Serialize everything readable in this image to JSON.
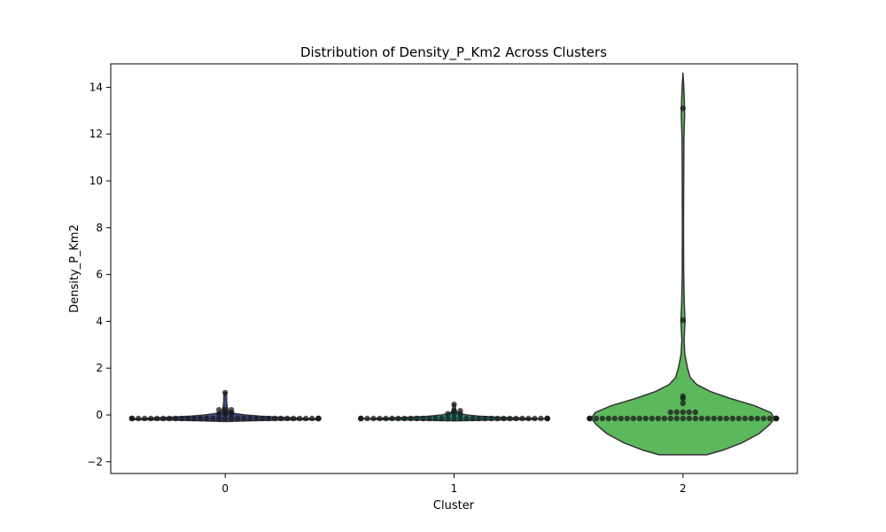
{
  "chart_data": {
    "type": "violin",
    "title": "Distribution of Density_P_Km2 Across Clusters",
    "xlabel": "Cluster",
    "ylabel": "Density_P_Km2",
    "categories": [
      "0",
      "1",
      "2"
    ],
    "ylim": [
      -2.5,
      15
    ],
    "yticks": [
      -2,
      0,
      2,
      4,
      6,
      8,
      10,
      12,
      14
    ],
    "ytick_labels": [
      "−2",
      "0",
      "2",
      "4",
      "6",
      "8",
      "10",
      "12",
      "14"
    ],
    "grid": false,
    "colors": {
      "0": "#3b4c8a",
      "1": "#21918c",
      "2": "#5cb85c",
      "edge": "#333333",
      "points": "#1a1a1a"
    },
    "violins": [
      {
        "category": "0",
        "profile": [
          [
            -0.28,
            0.02
          ],
          [
            -0.25,
            0.25
          ],
          [
            -0.22,
            0.6
          ],
          [
            -0.2,
            1.0
          ],
          [
            -0.17,
            1.0
          ],
          [
            -0.14,
            0.85
          ],
          [
            -0.1,
            0.62
          ],
          [
            -0.05,
            0.38
          ],
          [
            0.0,
            0.22
          ],
          [
            0.05,
            0.12
          ],
          [
            0.1,
            0.06
          ],
          [
            0.2,
            0.03
          ],
          [
            0.4,
            0.02
          ],
          [
            0.6,
            0.015
          ],
          [
            0.8,
            0.015
          ],
          [
            0.96,
            0.01
          ]
        ],
        "points": [
          {
            "y": -0.15,
            "n": 36
          },
          {
            "y": 0.95,
            "n": 1
          },
          {
            "y": 0.22,
            "n": 3
          },
          {
            "y": 0.1,
            "n": 2
          },
          {
            "y": 0.05,
            "n": 3
          }
        ]
      },
      {
        "category": "1",
        "profile": [
          [
            -0.25,
            0.02
          ],
          [
            -0.22,
            0.4
          ],
          [
            -0.2,
            0.8
          ],
          [
            -0.17,
            1.0
          ],
          [
            -0.14,
            0.8
          ],
          [
            -0.1,
            0.5
          ],
          [
            -0.05,
            0.27
          ],
          [
            0.0,
            0.14
          ],
          [
            0.05,
            0.07
          ],
          [
            0.1,
            0.035
          ],
          [
            0.2,
            0.02
          ],
          [
            0.3,
            0.015
          ],
          [
            0.45,
            0.01
          ]
        ],
        "points": [
          {
            "y": -0.15,
            "n": 36
          },
          {
            "y": 0.45,
            "n": 1
          },
          {
            "y": 0.18,
            "n": 2
          },
          {
            "y": 0.05,
            "n": 3
          }
        ]
      },
      {
        "category": "2",
        "profile": [
          [
            -1.7,
            0.26
          ],
          [
            -1.5,
            0.44
          ],
          [
            -1.2,
            0.64
          ],
          [
            -0.8,
            0.83
          ],
          [
            -0.4,
            0.95
          ],
          [
            -0.15,
            1.0
          ],
          [
            0.1,
            0.96
          ],
          [
            0.4,
            0.78
          ],
          [
            0.7,
            0.52
          ],
          [
            1.0,
            0.3
          ],
          [
            1.3,
            0.15
          ],
          [
            1.6,
            0.08
          ],
          [
            2.0,
            0.05
          ],
          [
            2.3,
            0.035
          ],
          [
            2.6,
            0.02
          ],
          [
            3.2,
            0.012
          ],
          [
            4.0,
            0.022
          ],
          [
            4.8,
            0.014
          ],
          [
            6.0,
            0.008
          ],
          [
            8.0,
            0.006
          ],
          [
            10.0,
            0.008
          ],
          [
            11.8,
            0.01
          ],
          [
            12.8,
            0.018
          ],
          [
            13.5,
            0.014
          ],
          [
            14.1,
            0.008
          ],
          [
            14.6,
            0.0
          ]
        ],
        "points": [
          {
            "y": -0.15,
            "n": 38
          },
          {
            "y": 13.1,
            "n": 1
          },
          {
            "y": 4.05,
            "n": 1
          },
          {
            "y": 0.8,
            "n": 1
          },
          {
            "y": 0.7,
            "n": 1
          },
          {
            "y": 0.5,
            "n": 1
          },
          {
            "y": 0.12,
            "n": 5
          }
        ]
      }
    ]
  }
}
